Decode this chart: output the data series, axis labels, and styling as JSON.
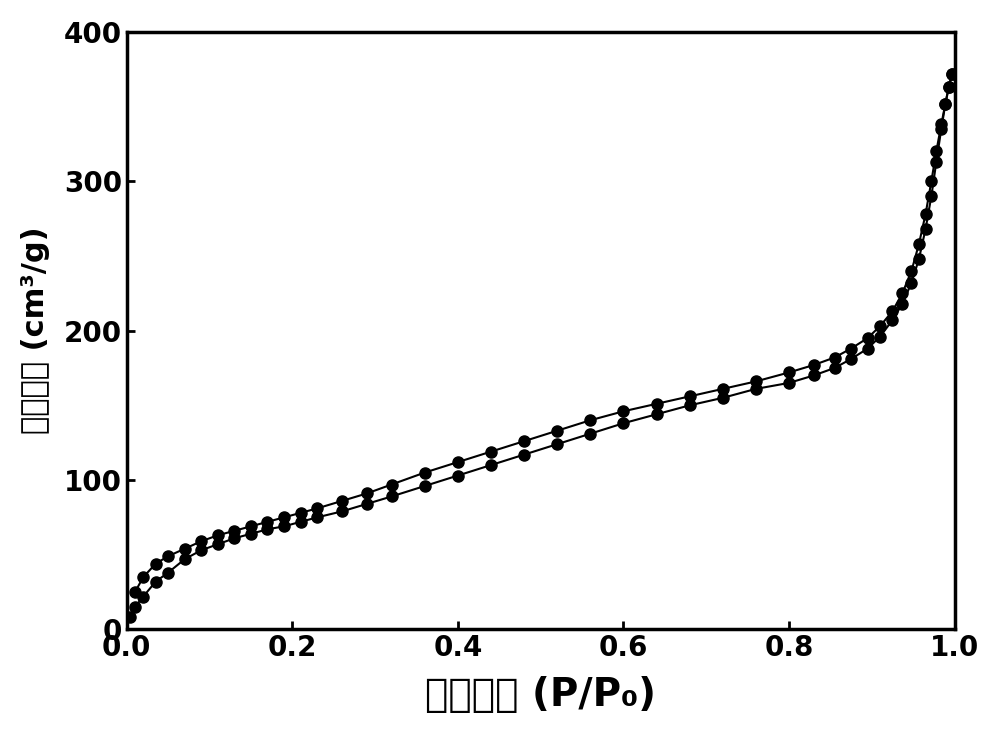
{
  "title": "",
  "xlabel": "相对压力 (P/P₀)",
  "ylabel": "吸附体积 (cm³/g)",
  "xlim": [
    0.0,
    1.0
  ],
  "ylim": [
    0,
    400
  ],
  "xticks": [
    0.0,
    0.2,
    0.4,
    0.6,
    0.8,
    1.0
  ],
  "yticks": [
    0,
    100,
    200,
    300,
    400
  ],
  "line_color": "#000000",
  "marker_color": "#000000",
  "marker": "o",
  "markersize": 8,
  "linewidth": 1.5,
  "xlabel_fontsize": 28,
  "ylabel_fontsize": 22,
  "tick_fontsize": 20,
  "adsorption_x": [
    0.004,
    0.01,
    0.02,
    0.035,
    0.05,
    0.07,
    0.09,
    0.11,
    0.13,
    0.15,
    0.17,
    0.19,
    0.21,
    0.23,
    0.26,
    0.29,
    0.32,
    0.36,
    0.4,
    0.44,
    0.48,
    0.52,
    0.56,
    0.6,
    0.64,
    0.68,
    0.72,
    0.76,
    0.8,
    0.83,
    0.855,
    0.875,
    0.895,
    0.91,
    0.925,
    0.937,
    0.948,
    0.957,
    0.965,
    0.972,
    0.978,
    0.984,
    0.989,
    0.993,
    0.997
  ],
  "adsorption_y": [
    8,
    15,
    22,
    32,
    38,
    47,
    53,
    57,
    61,
    64,
    67,
    69,
    72,
    75,
    79,
    84,
    89,
    96,
    103,
    110,
    117,
    124,
    131,
    138,
    144,
    150,
    155,
    161,
    165,
    170,
    175,
    181,
    188,
    196,
    207,
    218,
    232,
    248,
    268,
    290,
    313,
    335,
    352,
    363,
    372
  ],
  "desorption_x": [
    0.997,
    0.993,
    0.989,
    0.984,
    0.978,
    0.972,
    0.965,
    0.957,
    0.948,
    0.937,
    0.925,
    0.91,
    0.895,
    0.875,
    0.855,
    0.83,
    0.8,
    0.76,
    0.72,
    0.68,
    0.64,
    0.6,
    0.56,
    0.52,
    0.48,
    0.44,
    0.4,
    0.36,
    0.32,
    0.29,
    0.26,
    0.23,
    0.21,
    0.19,
    0.17,
    0.15,
    0.13,
    0.11,
    0.09,
    0.07,
    0.05,
    0.035,
    0.02,
    0.01
  ],
  "desorption_y": [
    372,
    363,
    352,
    338,
    320,
    300,
    278,
    258,
    240,
    225,
    213,
    203,
    195,
    188,
    182,
    177,
    172,
    166,
    161,
    156,
    151,
    146,
    140,
    133,
    126,
    119,
    112,
    105,
    97,
    91,
    86,
    81,
    78,
    75,
    72,
    69,
    66,
    63,
    59,
    54,
    49,
    44,
    35,
    25
  ],
  "bg_color": "#ffffff",
  "plot_bg_color": "#ffffff"
}
